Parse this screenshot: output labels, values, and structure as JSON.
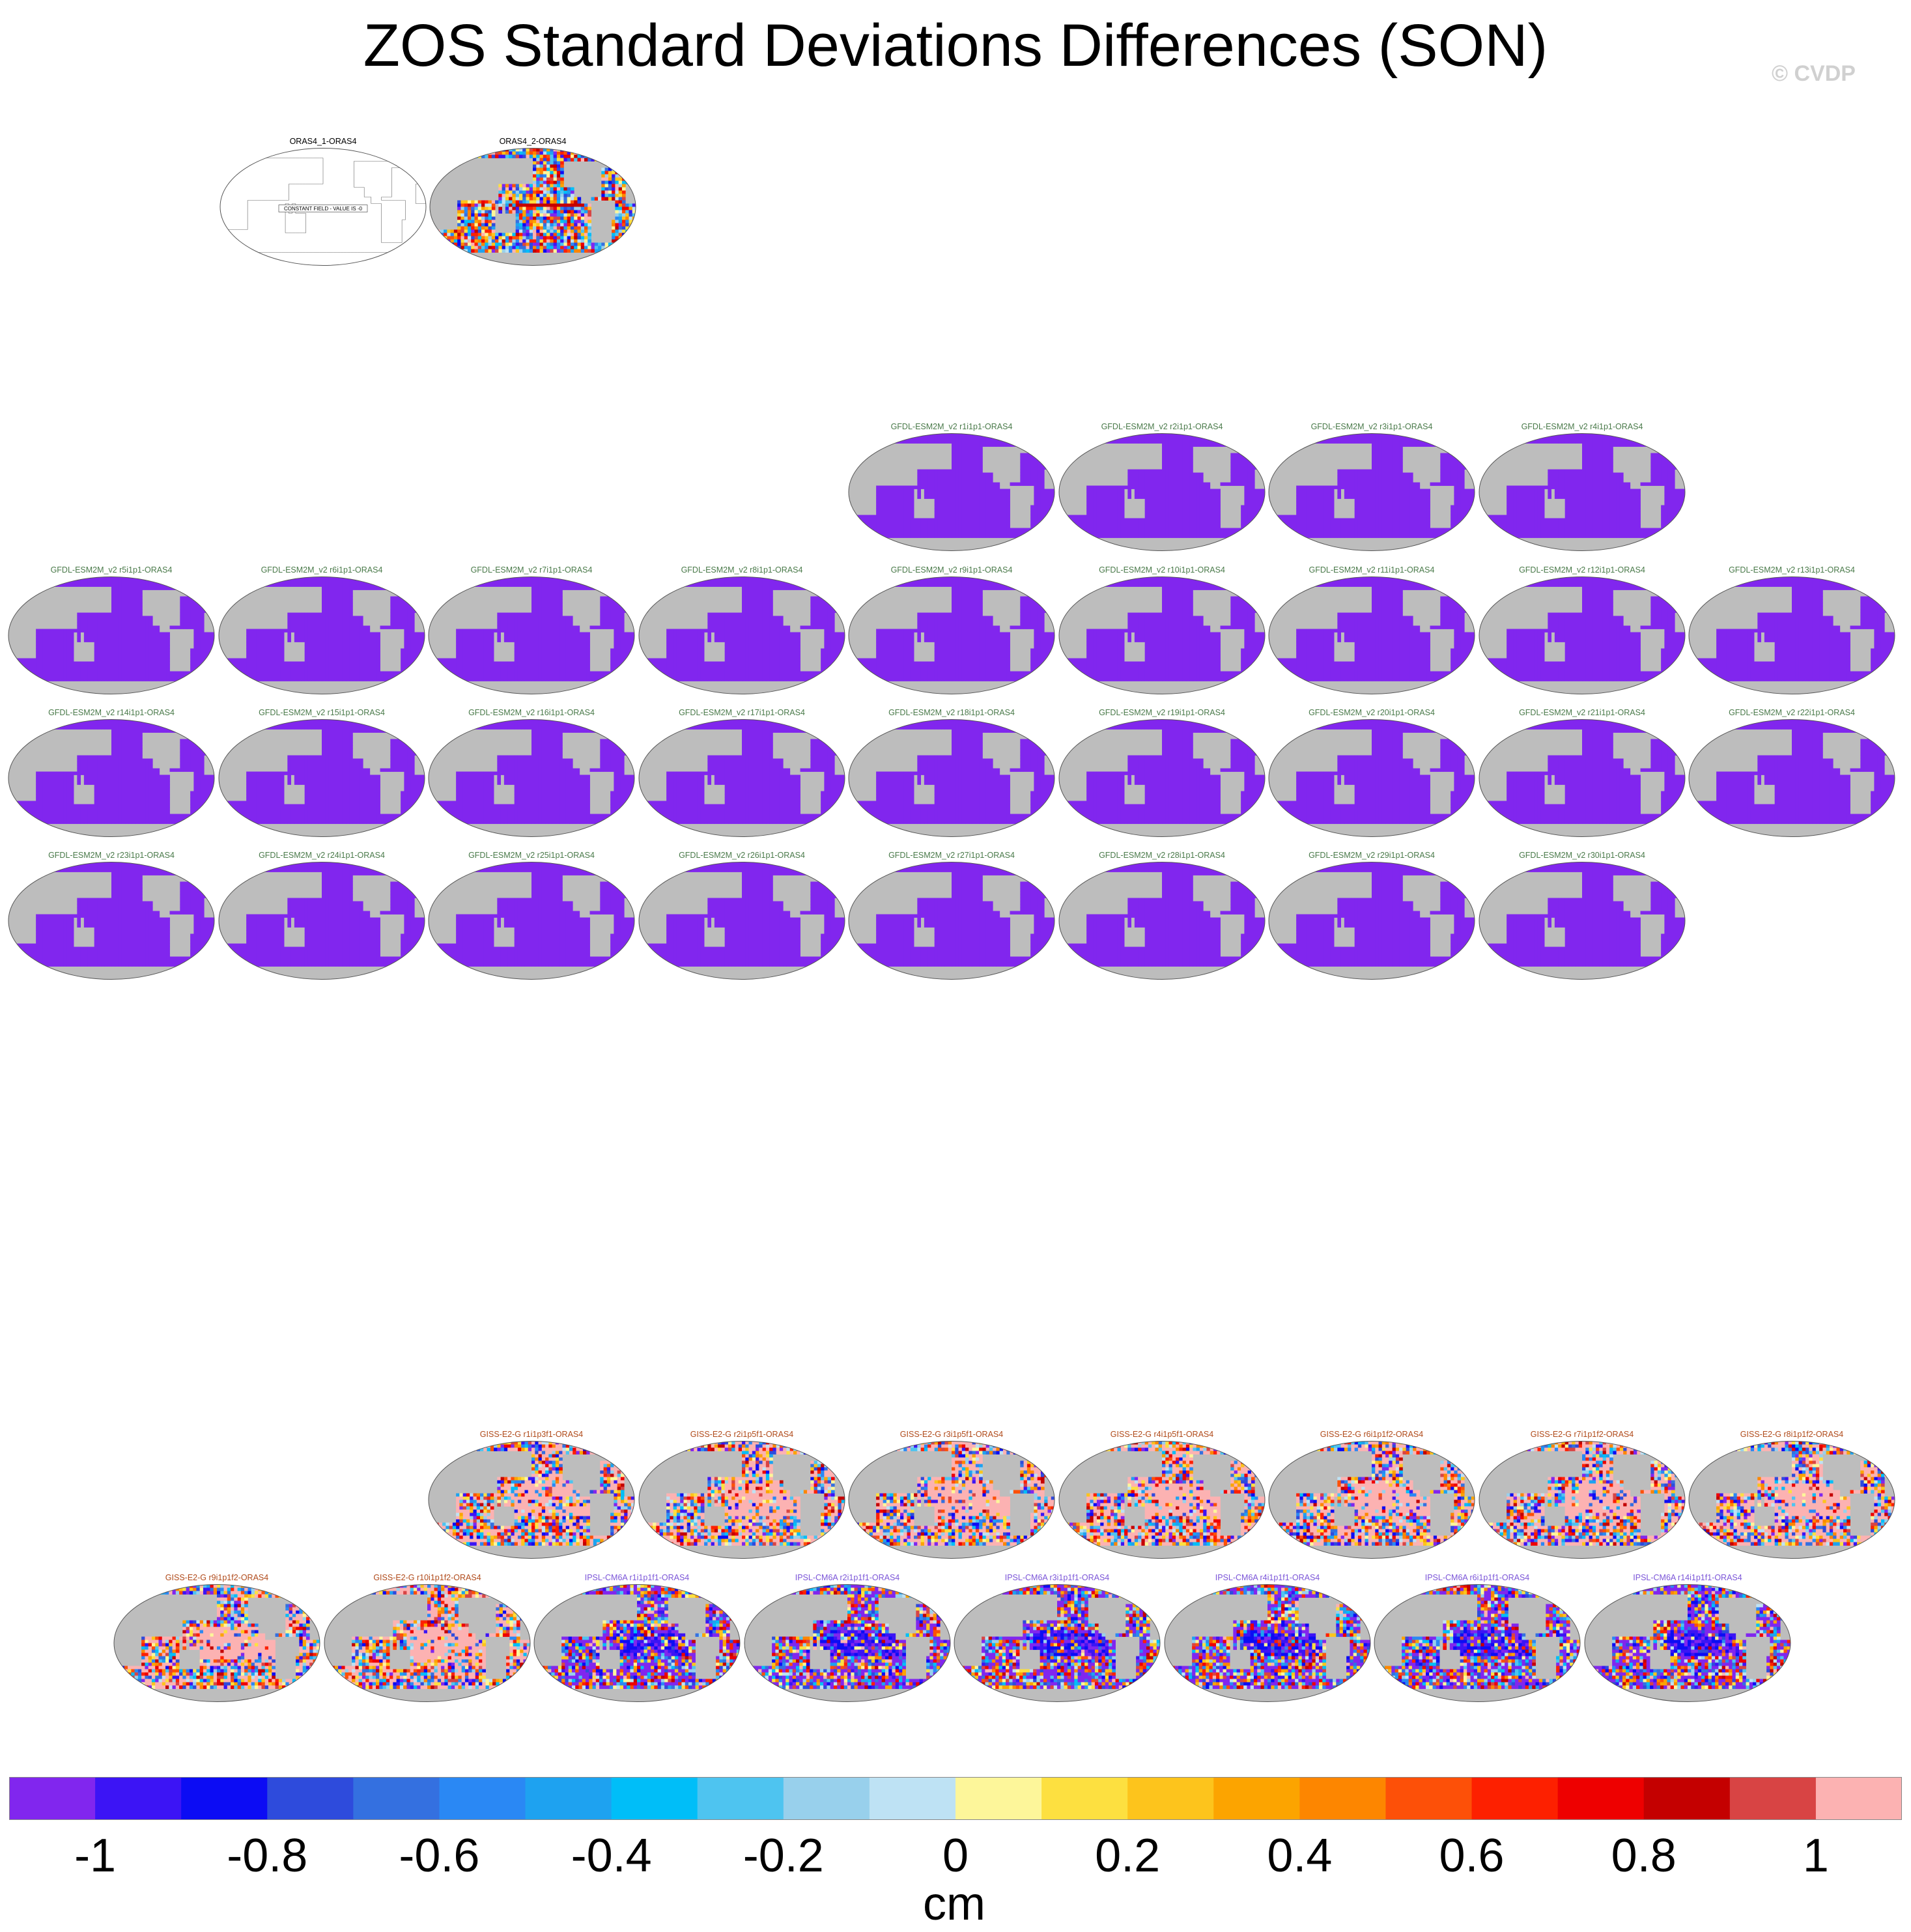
{
  "title": "ZOS Standard Deviations Differences (SON)",
  "copyright": "© CVDP",
  "colors": {
    "land": "#bdbdbd",
    "ocean_uniform": "#8126ee",
    "obs_title": "#000000",
    "gfdl_title": "#4a7a4a",
    "giss_title": "#b04a1a",
    "ipsl_title": "#7b55d8"
  },
  "constant_field_label": "CONSTANT FIELD - VALUE IS -0",
  "panels": [
    {
      "title": "ORAS4_1-ORAS4",
      "style": "empty",
      "group": "obs"
    },
    {
      "title": "ORAS4_2-ORAS4",
      "style": "noisy-red",
      "group": "obs"
    },
    {
      "title": "GFDL-ESM2M_v2 r1i1p1-ORAS4",
      "style": "uniform",
      "group": "gfdl"
    },
    {
      "title": "GFDL-ESM2M_v2 r2i1p1-ORAS4",
      "style": "uniform",
      "group": "gfdl"
    },
    {
      "title": "GFDL-ESM2M_v2 r3i1p1-ORAS4",
      "style": "uniform",
      "group": "gfdl"
    },
    {
      "title": "GFDL-ESM2M_v2 r4i1p1-ORAS4",
      "style": "uniform",
      "group": "gfdl"
    },
    {
      "title": "GFDL-ESM2M_v2 r5i1p1-ORAS4",
      "style": "uniform",
      "group": "gfdl"
    },
    {
      "title": "GFDL-ESM2M_v2 r6i1p1-ORAS4",
      "style": "uniform",
      "group": "gfdl"
    },
    {
      "title": "GFDL-ESM2M_v2 r7i1p1-ORAS4",
      "style": "uniform",
      "group": "gfdl"
    },
    {
      "title": "GFDL-ESM2M_v2 r8i1p1-ORAS4",
      "style": "uniform",
      "group": "gfdl"
    },
    {
      "title": "GFDL-ESM2M_v2 r9i1p1-ORAS4",
      "style": "uniform",
      "group": "gfdl"
    },
    {
      "title": "GFDL-ESM2M_v2 r10i1p1-ORAS4",
      "style": "uniform",
      "group": "gfdl"
    },
    {
      "title": "GFDL-ESM2M_v2 r11i1p1-ORAS4",
      "style": "uniform",
      "group": "gfdl"
    },
    {
      "title": "GFDL-ESM2M_v2 r12i1p1-ORAS4",
      "style": "uniform",
      "group": "gfdl"
    },
    {
      "title": "GFDL-ESM2M_v2 r13i1p1-ORAS4",
      "style": "uniform",
      "group": "gfdl"
    },
    {
      "title": "GFDL-ESM2M_v2 r14i1p1-ORAS4",
      "style": "uniform",
      "group": "gfdl"
    },
    {
      "title": "GFDL-ESM2M_v2 r15i1p1-ORAS4",
      "style": "uniform",
      "group": "gfdl"
    },
    {
      "title": "GFDL-ESM2M_v2 r16i1p1-ORAS4",
      "style": "uniform",
      "group": "gfdl"
    },
    {
      "title": "GFDL-ESM2M_v2 r17i1p1-ORAS4",
      "style": "uniform",
      "group": "gfdl"
    },
    {
      "title": "GFDL-ESM2M_v2 r18i1p1-ORAS4",
      "style": "uniform",
      "group": "gfdl"
    },
    {
      "title": "GFDL-ESM2M_v2 r19i1p1-ORAS4",
      "style": "uniform",
      "group": "gfdl"
    },
    {
      "title": "GFDL-ESM2M_v2 r20i1p1-ORAS4",
      "style": "uniform",
      "group": "gfdl"
    },
    {
      "title": "GFDL-ESM2M_v2 r21i1p1-ORAS4",
      "style": "uniform",
      "group": "gfdl"
    },
    {
      "title": "GFDL-ESM2M_v2 r22i1p1-ORAS4",
      "style": "uniform",
      "group": "gfdl"
    },
    {
      "title": "GFDL-ESM2M_v2 r23i1p1-ORAS4",
      "style": "uniform",
      "group": "gfdl"
    },
    {
      "title": "GFDL-ESM2M_v2 r24i1p1-ORAS4",
      "style": "uniform",
      "group": "gfdl"
    },
    {
      "title": "GFDL-ESM2M_v2 r25i1p1-ORAS4",
      "style": "uniform",
      "group": "gfdl"
    },
    {
      "title": "GFDL-ESM2M_v2 r26i1p1-ORAS4",
      "style": "uniform",
      "group": "gfdl"
    },
    {
      "title": "GFDL-ESM2M_v2 r27i1p1-ORAS4",
      "style": "uniform",
      "group": "gfdl"
    },
    {
      "title": "GFDL-ESM2M_v2 r28i1p1-ORAS4",
      "style": "uniform",
      "group": "gfdl"
    },
    {
      "title": "GFDL-ESM2M_v2 r29i1p1-ORAS4",
      "style": "uniform",
      "group": "gfdl"
    },
    {
      "title": "GFDL-ESM2M_v2 r30i1p1-ORAS4",
      "style": "uniform",
      "group": "gfdl"
    },
    {
      "title": "GISS-E2-G r1i1p3f1-ORAS4",
      "style": "noisy-pink",
      "group": "giss"
    },
    {
      "title": "GISS-E2-G r2i1p5f1-ORAS4",
      "style": "noisy-pink",
      "group": "giss"
    },
    {
      "title": "GISS-E2-G r3i1p5f1-ORAS4",
      "style": "noisy-pink",
      "group": "giss"
    },
    {
      "title": "GISS-E2-G r4i1p5f1-ORAS4",
      "style": "noisy-pink",
      "group": "giss"
    },
    {
      "title": "GISS-E2-G r6i1p1f2-ORAS4",
      "style": "noisy-pink",
      "group": "giss"
    },
    {
      "title": "GISS-E2-G r7i1p1f2-ORAS4",
      "style": "noisy-pink",
      "group": "giss"
    },
    {
      "title": "GISS-E2-G r8i1p1f2-ORAS4",
      "style": "noisy-pink",
      "group": "giss"
    },
    {
      "title": "GISS-E2-G r9i1p1f2-ORAS4",
      "style": "noisy-pink",
      "group": "giss"
    },
    {
      "title": "GISS-E2-G r10i1p1f2-ORAS4",
      "style": "noisy-pink",
      "group": "giss"
    },
    {
      "title": "IPSL-CM6A r1i1p1f1-ORAS4",
      "style": "noisy-purple",
      "group": "ipsl"
    },
    {
      "title": "IPSL-CM6A r2i1p1f1-ORAS4",
      "style": "noisy-purple",
      "group": "ipsl"
    },
    {
      "title": "IPSL-CM6A r3i1p1f1-ORAS4",
      "style": "noisy-purple",
      "group": "ipsl"
    },
    {
      "title": "IPSL-CM6A r4i1p1f1-ORAS4",
      "style": "noisy-purple",
      "group": "ipsl"
    },
    {
      "title": "IPSL-CM6A r6i1p1f1-ORAS4",
      "style": "noisy-purple",
      "group": "ipsl"
    },
    {
      "title": "IPSL-CM6A r14i1p1f1-ORAS4",
      "style": "noisy-purple",
      "group": "ipsl"
    }
  ],
  "colorbar": {
    "units": "cm",
    "tick_labels": [
      "-1",
      "-0.8",
      "-0.6",
      "-0.4",
      "-0.2",
      "0",
      "0.2",
      "0.4",
      "0.6",
      "0.8",
      "1"
    ],
    "tick_values": [
      -1,
      -0.8,
      -0.6,
      -0.4,
      -0.2,
      0,
      0.2,
      0.4,
      0.6,
      0.8,
      1
    ],
    "colors": [
      "#8126ee",
      "#3c14f5",
      "#0c0cf4",
      "#2e4bdc",
      "#3470e0",
      "#2a88f4",
      "#1ea2f0",
      "#00bef8",
      "#4ec4f0",
      "#98d0ec",
      "#bee2f4",
      "#fdf69a",
      "#fde040",
      "#fdc41c",
      "#fca400",
      "#fd8600",
      "#fd5008",
      "#fd2000",
      "#ee0000",
      "#c40000",
      "#d84444",
      "#fcb2b2"
    ]
  }
}
